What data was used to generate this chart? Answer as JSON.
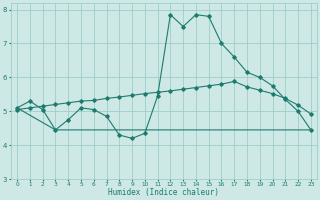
{
  "xlabel": "Humidex (Indice chaleur)",
  "background_color": "#cde8e5",
  "grid_color": "#9ececa",
  "line_color": "#1e7b6e",
  "xlim": [
    -0.5,
    23.5
  ],
  "ylim": [
    3,
    8.2
  ],
  "xticks": [
    0,
    1,
    2,
    3,
    4,
    5,
    6,
    7,
    8,
    9,
    10,
    11,
    12,
    13,
    14,
    15,
    16,
    17,
    18,
    19,
    20,
    21,
    22,
    23
  ],
  "yticks": [
    3,
    4,
    5,
    6,
    7,
    8
  ],
  "curve1_x": [
    0,
    1,
    2,
    3,
    4,
    5,
    6,
    7,
    8,
    9,
    10,
    11,
    12,
    13,
    14,
    15,
    16,
    17,
    18,
    19,
    20,
    21,
    22,
    23
  ],
  "curve1_y": [
    5.1,
    5.3,
    5.05,
    4.45,
    4.75,
    5.1,
    5.05,
    4.85,
    4.3,
    4.2,
    4.35,
    5.45,
    7.85,
    7.5,
    7.85,
    7.8,
    7.0,
    6.6,
    6.15,
    6.0,
    5.75,
    5.35,
    5.0,
    4.45
  ],
  "curve2_x": [
    0,
    1,
    2,
    3,
    4,
    5,
    6,
    7,
    8,
    9,
    10,
    11,
    12,
    13,
    14,
    15,
    16,
    17,
    18,
    19,
    20,
    21,
    22,
    23
  ],
  "curve2_y": [
    5.05,
    5.1,
    5.15,
    5.2,
    5.25,
    5.3,
    5.32,
    5.38,
    5.42,
    5.47,
    5.52,
    5.56,
    5.6,
    5.65,
    5.7,
    5.75,
    5.8,
    5.88,
    5.72,
    5.62,
    5.52,
    5.38,
    5.18,
    4.92
  ],
  "curve3_x": [
    0,
    3,
    23
  ],
  "curve3_y": [
    5.1,
    4.45,
    4.45
  ]
}
